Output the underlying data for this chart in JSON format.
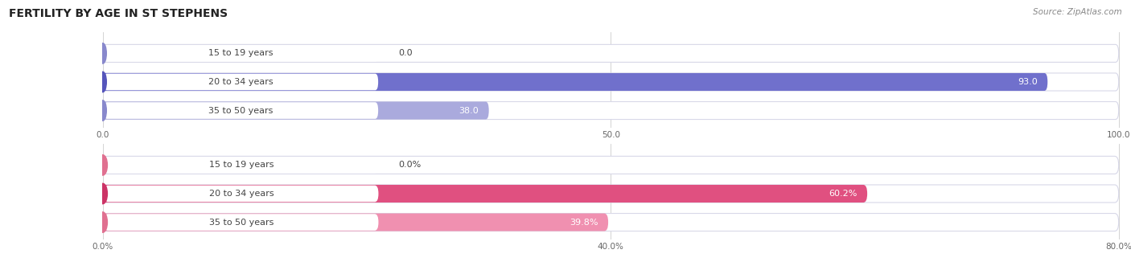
{
  "title": "FERTILITY BY AGE IN ST STEPHENS",
  "source": "Source: ZipAtlas.com",
  "top_chart": {
    "categories": [
      "15 to 19 years",
      "20 to 34 years",
      "35 to 50 years"
    ],
    "values": [
      0.0,
      93.0,
      38.0
    ],
    "xlim_max": 100,
    "xticks": [
      0.0,
      50.0,
      100.0
    ],
    "xtick_labels": [
      "0.0",
      "50.0",
      "100.0"
    ],
    "bar_color_strong": "#7070cc",
    "bar_color_light": "#aaaadd",
    "circle_color_strong": "#5555bb",
    "circle_color_light": "#8888cc"
  },
  "bottom_chart": {
    "categories": [
      "15 to 19 years",
      "20 to 34 years",
      "35 to 50 years"
    ],
    "values": [
      0.0,
      60.2,
      39.8
    ],
    "xlim_max": 80,
    "xticks": [
      0.0,
      40.0,
      80.0
    ],
    "xtick_labels": [
      "0.0%",
      "40.0%",
      "80.0%"
    ],
    "bar_color_strong": "#e05080",
    "bar_color_light": "#f090b0",
    "circle_color_strong": "#cc3366",
    "circle_color_light": "#e07090",
    "value_suffix": "%"
  },
  "bg_color": "#ffffff",
  "bar_bg_color": "#f0f0f5",
  "label_color": "#444444",
  "label_fontsize": 8,
  "value_fontsize": 8,
  "title_fontsize": 10,
  "source_fontsize": 7.5
}
